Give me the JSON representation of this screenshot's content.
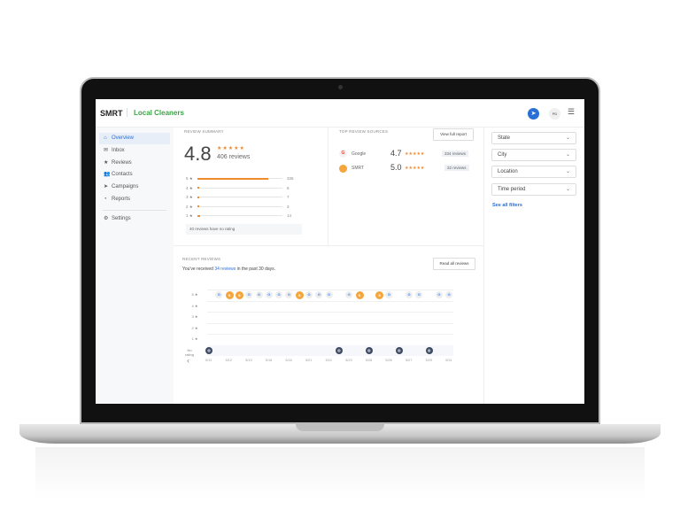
{
  "brand": {
    "logo": "SMRT",
    "business": "Local Cleaners",
    "accent": "#2a6fd6",
    "business_color": "#3aa546"
  },
  "header": {
    "avatar": "PD",
    "send_icon": "send-icon",
    "menu_icon": "menu-icon"
  },
  "sidebar": {
    "items": [
      {
        "label": "Overview",
        "icon": "home-icon",
        "active": true
      },
      {
        "label": "Inbox",
        "icon": "inbox-icon"
      },
      {
        "label": "Reviews",
        "icon": "star-icon"
      },
      {
        "label": "Contacts",
        "icon": "contacts-icon"
      },
      {
        "label": "Campaigns",
        "icon": "megaphone-icon"
      },
      {
        "label": "Reports",
        "icon": "chart-icon"
      },
      {
        "label": "Settings",
        "icon": "gear-icon"
      }
    ]
  },
  "summary": {
    "title": "REVIEW SUMMARY",
    "rating": "4.8",
    "stars": "★★★★★",
    "count": "406 reviews",
    "breakdown": [
      {
        "label": "5 ★",
        "count": 336,
        "frac": 0.83
      },
      {
        "label": "4 ★",
        "count": 6,
        "frac": 0.015
      },
      {
        "label": "3 ★",
        "count": 7,
        "frac": 0.015
      },
      {
        "label": "2 ★",
        "count": 3,
        "frac": 0.01
      },
      {
        "label": "1 ★",
        "count": 14,
        "frac": 0.03
      }
    ],
    "no_rating": "40 reviews have no rating"
  },
  "sources": {
    "title": "TOP REVIEW SOURCES",
    "button": "View full report",
    "items": [
      {
        "name": "Google",
        "rating": "4.7",
        "stars": "★★★★★",
        "count": "334 reviews"
      },
      {
        "name": "SMRT",
        "rating": "5.0",
        "stars": "★★★★★",
        "count": "32 reviews"
      }
    ]
  },
  "filters": {
    "selects": [
      "State",
      "City",
      "Location",
      "Time period"
    ],
    "link": "See all filters"
  },
  "recent": {
    "title": "RECENT REVIEWS",
    "text_pre": "You've received ",
    "text_link": "34 reviews",
    "text_post": " in the past 30 days.",
    "button": "Read all reviews",
    "rows": [
      "5 ★",
      "4 ★",
      "3 ★",
      "2 ★",
      "1 ★",
      "No rating"
    ],
    "dates": [
      "5/12",
      "5/12",
      "5/13",
      "5/16",
      "5/16",
      "5/21",
      "5/21",
      "5/23",
      "5/26",
      "5/26",
      "5/27",
      "5/29",
      "5/31"
    ],
    "five_star": [
      "",
      "G",
      "S",
      "S",
      "G",
      "G",
      "G",
      "G",
      "G",
      "S",
      "G",
      "G",
      "G",
      "",
      "G",
      "S",
      "",
      "S",
      "G",
      "",
      "G",
      "G",
      "",
      "G",
      "G"
    ],
    "no_rating": [
      "N",
      "",
      "",
      "",
      "",
      "",
      "",
      "",
      "",
      "",
      "",
      "",
      "",
      "N",
      "",
      "",
      "N",
      "",
      "",
      "N",
      "",
      "",
      "N",
      "",
      ""
    ]
  }
}
